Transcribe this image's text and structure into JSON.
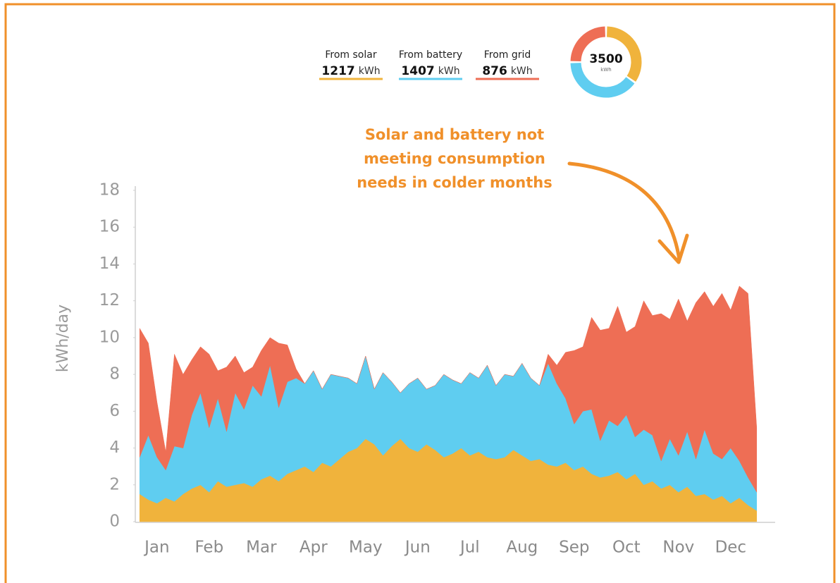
{
  "chart_data": {
    "type": "stacked_area",
    "unit": "kWh",
    "total": 3500,
    "y_label": "kWh/day",
    "annotation": [
      "Solar and battery not",
      "meeting consumption",
      "needs in colder months"
    ],
    "ylim": [
      0,
      18
    ],
    "yticks": [
      0,
      2,
      4,
      6,
      8,
      10,
      12,
      14,
      16,
      18
    ],
    "categories": [
      null,
      null,
      "Jan",
      null,
      null,
      null,
      null,
      null,
      "Feb",
      null,
      null,
      null,
      null,
      null,
      "Mar",
      null,
      null,
      null,
      null,
      null,
      "Apr",
      null,
      null,
      null,
      null,
      null,
      "May",
      null,
      null,
      null,
      null,
      null,
      "Jun",
      null,
      null,
      null,
      null,
      null,
      "Jul",
      null,
      null,
      null,
      null,
      null,
      "Aug",
      null,
      null,
      null,
      null,
      null,
      "Sep",
      null,
      null,
      null,
      null,
      null,
      "Oct",
      null,
      null,
      null,
      null,
      null,
      "Nov",
      null,
      null,
      null,
      null,
      null,
      "Dec",
      null,
      null,
      null
    ],
    "series": [
      {
        "name": "From solar",
        "color": "#f0b33c",
        "total": 1217,
        "values": [
          1.5,
          1.2,
          1.0,
          1.3,
          1.1,
          1.5,
          1.8,
          2.0,
          1.6,
          2.2,
          1.9,
          2.0,
          2.1,
          1.9,
          2.3,
          2.5,
          2.2,
          2.6,
          2.8,
          3.0,
          2.7,
          3.2,
          3.0,
          3.4,
          3.8,
          4.0,
          4.5,
          4.2,
          3.6,
          4.1,
          4.5,
          4.0,
          3.8,
          4.2,
          3.9,
          3.5,
          3.7,
          4.0,
          3.6,
          3.8,
          3.5,
          3.4,
          3.5,
          3.9,
          3.6,
          3.3,
          3.4,
          3.1,
          3.0,
          3.2,
          2.8,
          3.0,
          2.6,
          2.4,
          2.5,
          2.7,
          2.3,
          2.6,
          2.0,
          2.2,
          1.8,
          2.0,
          1.6,
          1.9,
          1.4,
          1.5,
          1.2,
          1.4,
          1.0,
          1.3,
          0.9,
          0.6
        ]
      },
      {
        "name": "From battery",
        "color": "#5fcdf0",
        "total": 1407,
        "values": [
          2.0,
          3.5,
          2.5,
          1.5,
          3.0,
          2.5,
          4.0,
          5.0,
          3.5,
          4.5,
          3.0,
          5.0,
          4.0,
          5.5,
          4.5,
          6.0,
          4.0,
          5.0,
          5.0,
          4.5,
          5.5,
          4.0,
          5.0,
          4.5,
          4.0,
          3.5,
          4.5,
          3.0,
          4.5,
          3.5,
          2.5,
          3.5,
          4.0,
          3.0,
          3.5,
          4.5,
          4.0,
          3.5,
          4.5,
          4.0,
          5.0,
          4.0,
          4.5,
          4.0,
          5.0,
          4.5,
          4.0,
          5.5,
          4.5,
          3.5,
          2.5,
          3.0,
          3.5,
          2.0,
          3.0,
          2.5,
          3.5,
          2.0,
          3.0,
          2.5,
          1.5,
          2.5,
          2.0,
          3.0,
          2.0,
          3.5,
          2.5,
          2.0,
          3.0,
          2.0,
          1.5,
          1.0
        ]
      },
      {
        "name": "From grid",
        "color": "#ee6e55",
        "total": 876,
        "values": [
          7.0,
          5.0,
          3.0,
          1.0,
          5.0,
          4.0,
          3.0,
          2.5,
          4.0,
          1.5,
          3.5,
          2.0,
          2.0,
          1.0,
          2.5,
          1.5,
          3.5,
          2.0,
          0.5,
          0,
          0,
          0,
          0,
          0,
          0,
          0,
          0,
          0,
          0,
          0,
          0,
          0,
          0,
          0,
          0,
          0,
          0,
          0,
          0,
          0,
          0,
          0,
          0,
          0,
          0,
          0,
          0,
          0.5,
          1.0,
          2.5,
          4.0,
          3.5,
          5.0,
          6.0,
          5.0,
          6.5,
          4.5,
          6.0,
          7.0,
          6.5,
          8.0,
          6.5,
          8.5,
          6.0,
          8.5,
          7.5,
          8.0,
          9.0,
          7.5,
          9.5,
          10.0,
          3.5
        ]
      }
    ]
  }
}
